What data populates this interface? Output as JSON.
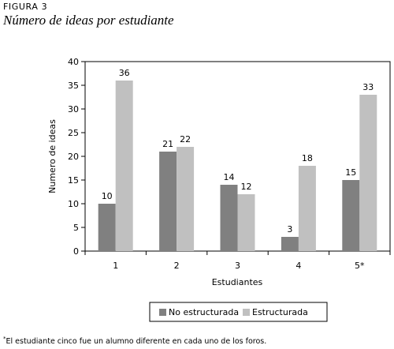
{
  "figure": {
    "label": "FIGURA 3",
    "title": "Número de ideas por estudiante"
  },
  "chart_data": {
    "type": "bar",
    "categories": [
      "1",
      "2",
      "3",
      "4",
      "5*"
    ],
    "series": [
      {
        "name": "No estructurada",
        "values": [
          10,
          21,
          14,
          3,
          15
        ],
        "color": "#808080"
      },
      {
        "name": "Estructurada",
        "values": [
          36,
          22,
          12,
          18,
          33
        ],
        "color": "#c0c0c0"
      }
    ],
    "xlabel": "Estudiantes",
    "ylabel": "Numero de ideas",
    "ylim": [
      0,
      40
    ],
    "yticks": [
      0,
      5,
      10,
      15,
      20,
      25,
      30,
      35,
      40
    ],
    "grid": false,
    "legend_position": "bottom"
  },
  "footnote": {
    "mark": "*",
    "text": "El estudiante cinco fue un alumno diferente en cada uno de los foros."
  }
}
